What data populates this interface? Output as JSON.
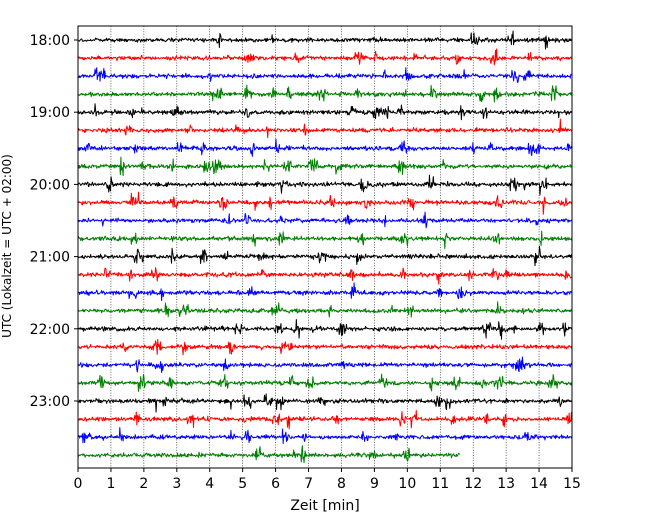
{
  "chart_data": {
    "type": "line",
    "title": "",
    "xlabel": "Zeit  [min]",
    "ylabel": "UTC (Lokalzeit = UTC + 02:00)",
    "xlim": [
      0,
      15
    ],
    "x_ticks": [
      "0",
      "1",
      "2",
      "3",
      "4",
      "5",
      "6",
      "7",
      "8",
      "9",
      "10",
      "11",
      "12",
      "13",
      "14",
      "15"
    ],
    "y_ticks": [
      {
        "label": "18:00",
        "trace": 0
      },
      {
        "label": "19:00",
        "trace": 4
      },
      {
        "label": "20:00",
        "trace": 8
      },
      {
        "label": "21:00",
        "trace": 12
      },
      {
        "label": "22:00",
        "trace": 16
      },
      {
        "label": "23:00",
        "trace": 20
      }
    ],
    "grid": "vertical-dotted",
    "trace_colors": [
      "#000000",
      "#ff0000",
      "#0000ff",
      "#008000"
    ],
    "trace_minutes": [
      15,
      15,
      15,
      15,
      15,
      15,
      15,
      15,
      15,
      15,
      15,
      15,
      15,
      15,
      15,
      15,
      15,
      15,
      15,
      15,
      15,
      15,
      15,
      11.6
    ],
    "trace_start_times": [
      "18:00",
      "18:15",
      "18:30",
      "18:45",
      "19:00",
      "19:15",
      "19:30",
      "19:45",
      "20:00",
      "20:15",
      "20:30",
      "20:45",
      "21:00",
      "21:15",
      "21:30",
      "21:45",
      "22:00",
      "22:15",
      "22:30",
      "22:45",
      "23:00",
      "23:15",
      "23:30",
      "23:45"
    ]
  }
}
